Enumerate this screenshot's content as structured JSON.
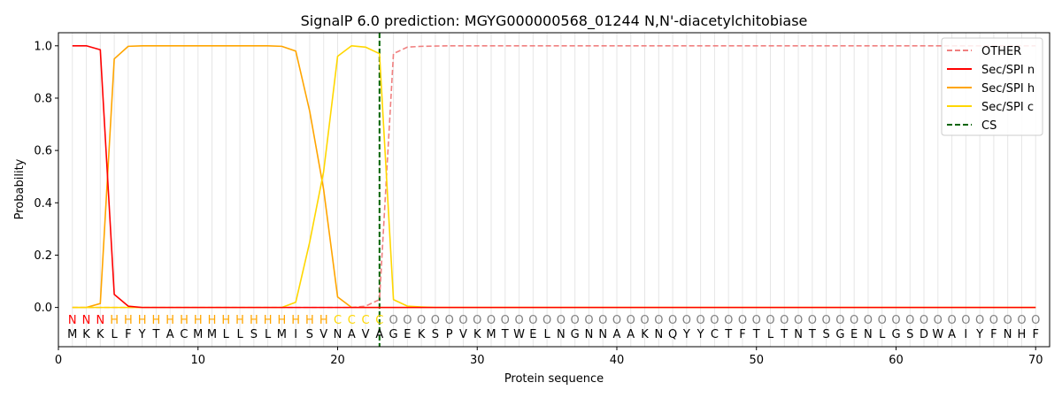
{
  "chart_data": {
    "type": "line",
    "title": "SignalP 6.0 prediction: MGYG000000568_01244 N,N'-diacetylchitobiase",
    "xlabel": "Protein sequence",
    "ylabel": "Probability",
    "xlim": [
      0,
      71
    ],
    "ylim": [
      -0.15,
      1.05
    ],
    "xticks": [
      0,
      10,
      20,
      30,
      40,
      50,
      60,
      70
    ],
    "yticks": [
      0.0,
      0.2,
      0.4,
      0.6,
      0.8,
      1.0
    ],
    "xtick_labels": [
      "0",
      "10",
      "20",
      "30",
      "40",
      "50",
      "60",
      "70"
    ],
    "ytick_labels": [
      "0.0",
      "0.2",
      "0.4",
      "0.6",
      "0.8",
      "1.0"
    ],
    "legend_position": "top-right",
    "sequence": [
      "M",
      "K",
      "K",
      "L",
      "F",
      "Y",
      "T",
      "A",
      "C",
      "M",
      "M",
      "L",
      "L",
      "S",
      "L",
      "M",
      "I",
      "S",
      "V",
      "N",
      "A",
      "V",
      "A",
      "G",
      "E",
      "K",
      "S",
      "P",
      "V",
      "K",
      "M",
      "T",
      "W",
      "E",
      "L",
      "N",
      "G",
      "N",
      "N",
      "A",
      "A",
      "K",
      "N",
      "Q",
      "Y",
      "Y",
      "C",
      "T",
      "F",
      "T",
      "L",
      "T",
      "N",
      "T",
      "S",
      "G",
      "E",
      "N",
      "L",
      "G",
      "S",
      "D",
      "W",
      "A",
      "I",
      "Y",
      "F",
      "N",
      "H",
      "F"
    ],
    "labels": [
      "N",
      "N",
      "N",
      "H",
      "H",
      "H",
      "H",
      "H",
      "H",
      "H",
      "H",
      "H",
      "H",
      "H",
      "H",
      "H",
      "H",
      "H",
      "H",
      "C",
      "C",
      "C",
      "C",
      "O",
      "O",
      "O",
      "O",
      "O",
      "O",
      "O",
      "O",
      "O",
      "O",
      "O",
      "O",
      "O",
      "O",
      "O",
      "O",
      "O",
      "O",
      "O",
      "O",
      "O",
      "O",
      "O",
      "O",
      "O",
      "O",
      "O",
      "O",
      "O",
      "O",
      "O",
      "O",
      "O",
      "O",
      "O",
      "O",
      "O",
      "O",
      "O",
      "O",
      "O",
      "O",
      "O",
      "O",
      "O",
      "O",
      "O"
    ],
    "label_colors": {
      "N": "#ff0000",
      "H": "#ffa500",
      "C": "#ffd700",
      "O": "#808080"
    },
    "cleavage_site": 23,
    "series": [
      {
        "name": "OTHER",
        "color": "#f08080",
        "dash": true,
        "values": [
          0,
          0,
          0,
          0,
          0,
          0,
          0,
          0,
          0,
          0,
          0,
          0,
          0,
          0,
          0,
          0,
          0,
          0,
          0,
          0,
          0,
          0.005,
          0.03,
          0.97,
          0.995,
          0.998,
          0.999,
          1,
          1,
          1,
          1,
          1,
          1,
          1,
          1,
          1,
          1,
          1,
          1,
          1,
          1,
          1,
          1,
          1,
          1,
          1,
          1,
          1,
          1,
          1,
          1,
          1,
          1,
          1,
          1,
          1,
          1,
          1,
          1,
          1,
          1,
          1,
          1,
          1,
          1,
          1,
          1,
          1,
          1,
          1
        ]
      },
      {
        "name": "Sec/SPI n",
        "color": "#ff0000",
        "dash": false,
        "values": [
          1.0,
          1.0,
          0.985,
          0.05,
          0.005,
          0,
          0,
          0,
          0,
          0,
          0,
          0,
          0,
          0,
          0,
          0,
          0,
          0,
          0,
          0,
          0,
          0,
          0,
          0,
          0,
          0,
          0,
          0,
          0,
          0,
          0,
          0,
          0,
          0,
          0,
          0,
          0,
          0,
          0,
          0,
          0,
          0,
          0,
          0,
          0,
          0,
          0,
          0,
          0,
          0,
          0,
          0,
          0,
          0,
          0,
          0,
          0,
          0,
          0,
          0,
          0,
          0,
          0,
          0,
          0,
          0,
          0,
          0,
          0,
          0
        ]
      },
      {
        "name": "Sec/SPI h",
        "color": "#ffa500",
        "dash": false,
        "values": [
          0,
          0,
          0.015,
          0.95,
          0.998,
          1.0,
          1.0,
          1.0,
          1.0,
          1.0,
          1.0,
          1.0,
          1.0,
          1.0,
          1.0,
          0.998,
          0.98,
          0.75,
          0.45,
          0.04,
          0,
          0,
          0,
          0,
          0,
          0,
          0,
          0,
          0,
          0,
          0,
          0,
          0,
          0,
          0,
          0,
          0,
          0,
          0,
          0,
          0,
          0,
          0,
          0,
          0,
          0,
          0,
          0,
          0,
          0,
          0,
          0,
          0,
          0,
          0,
          0,
          0,
          0,
          0,
          0,
          0,
          0,
          0,
          0,
          0,
          0,
          0,
          0,
          0,
          0
        ]
      },
      {
        "name": "Sec/SPI c",
        "color": "#ffd700",
        "dash": false,
        "values": [
          0,
          0,
          0,
          0,
          0,
          0,
          0,
          0,
          0,
          0,
          0,
          0,
          0,
          0,
          0,
          0,
          0.02,
          0.25,
          0.52,
          0.96,
          1.0,
          0.995,
          0.97,
          0.03,
          0.005,
          0.002,
          0,
          0,
          0,
          0,
          0,
          0,
          0,
          0,
          0,
          0,
          0,
          0,
          0,
          0,
          0,
          0,
          0,
          0,
          0,
          0,
          0,
          0,
          0,
          0,
          0,
          0,
          0,
          0,
          0,
          0,
          0,
          0,
          0,
          0,
          0,
          0,
          0,
          0,
          0,
          0,
          0,
          0,
          0,
          0
        ]
      },
      {
        "name": "CS",
        "color": "#006400",
        "dash": true,
        "vertical_at": 23
      }
    ]
  }
}
